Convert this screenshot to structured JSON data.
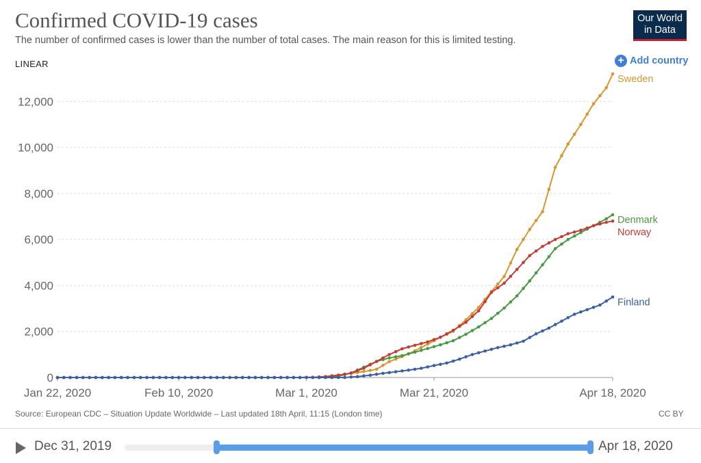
{
  "header": {
    "title": "Confirmed COVID-19 cases",
    "subtitle": "The number of confirmed cases is lower than the number of total cases. The main reason for this is limited testing.",
    "logo_line1": "Our World",
    "logo_line2": "in Data"
  },
  "controls": {
    "scale_label": "LINEAR",
    "add_country_label": "Add country",
    "plus_symbol": "+"
  },
  "chart_data": {
    "type": "line",
    "title": "Confirmed COVID-19 cases",
    "xlabel": "",
    "ylabel": "",
    "ylim": [
      0,
      13200
    ],
    "x_start_date": "2020-01-22",
    "x_end_date": "2020-04-18",
    "x_day_range": [
      0,
      87
    ],
    "x_ticks": [
      {
        "day": 0,
        "label": "Jan 22, 2020"
      },
      {
        "day": 19,
        "label": "Feb 10, 2020"
      },
      {
        "day": 39,
        "label": "Mar 1, 2020"
      },
      {
        "day": 59,
        "label": "Mar 21, 2020"
      },
      {
        "day": 87,
        "label": "Apr 18, 2020"
      }
    ],
    "y_ticks": [
      {
        "value": 0,
        "label": "0"
      },
      {
        "value": 2000,
        "label": "2,000"
      },
      {
        "value": 4000,
        "label": "4,000"
      },
      {
        "value": 6000,
        "label": "6,000"
      },
      {
        "value": 8000,
        "label": "8,000"
      },
      {
        "value": 10000,
        "label": "10,000"
      },
      {
        "value": 12000,
        "label": "12,000"
      }
    ],
    "grid": true,
    "series": [
      {
        "name": "Sweden",
        "color": "#d9962f",
        "points": [
          [
            0,
            0
          ],
          [
            38,
            0
          ],
          [
            40,
            10
          ],
          [
            42,
            40
          ],
          [
            44,
            100
          ],
          [
            46,
            180
          ],
          [
            48,
            260
          ],
          [
            50,
            360
          ],
          [
            52,
            690
          ],
          [
            54,
            910
          ],
          [
            56,
            1160
          ],
          [
            58,
            1450
          ],
          [
            60,
            1750
          ],
          [
            62,
            2010
          ],
          [
            64,
            2510
          ],
          [
            66,
            3050
          ],
          [
            68,
            3740
          ],
          [
            70,
            4390
          ],
          [
            72,
            5570
          ],
          [
            74,
            6440
          ],
          [
            76,
            7210
          ],
          [
            78,
            9140
          ],
          [
            80,
            10150
          ],
          [
            82,
            11000
          ],
          [
            84,
            11900
          ],
          [
            86,
            12600
          ],
          [
            87,
            13200
          ]
        ]
      },
      {
        "name": "Denmark",
        "color": "#4a9a43",
        "points": [
          [
            0,
            0
          ],
          [
            42,
            0
          ],
          [
            44,
            50
          ],
          [
            46,
            200
          ],
          [
            48,
            450
          ],
          [
            50,
            700
          ],
          [
            52,
            850
          ],
          [
            54,
            950
          ],
          [
            56,
            1100
          ],
          [
            58,
            1260
          ],
          [
            60,
            1420
          ],
          [
            62,
            1600
          ],
          [
            64,
            1880
          ],
          [
            66,
            2200
          ],
          [
            68,
            2570
          ],
          [
            70,
            3020
          ],
          [
            72,
            3550
          ],
          [
            74,
            4200
          ],
          [
            76,
            4900
          ],
          [
            78,
            5600
          ],
          [
            80,
            6000
          ],
          [
            82,
            6300
          ],
          [
            84,
            6600
          ],
          [
            86,
            6900
          ],
          [
            87,
            7075
          ]
        ]
      },
      {
        "name": "Norway",
        "color": "#c33c35",
        "points": [
          [
            0,
            0
          ],
          [
            38,
            0
          ],
          [
            40,
            10
          ],
          [
            42,
            40
          ],
          [
            44,
            100
          ],
          [
            46,
            190
          ],
          [
            48,
            400
          ],
          [
            50,
            700
          ],
          [
            52,
            1000
          ],
          [
            54,
            1250
          ],
          [
            56,
            1400
          ],
          [
            58,
            1550
          ],
          [
            60,
            1750
          ],
          [
            62,
            2050
          ],
          [
            64,
            2400
          ],
          [
            66,
            2900
          ],
          [
            68,
            3700
          ],
          [
            70,
            4100
          ],
          [
            72,
            4700
          ],
          [
            74,
            5300
          ],
          [
            76,
            5700
          ],
          [
            78,
            6000
          ],
          [
            80,
            6250
          ],
          [
            82,
            6400
          ],
          [
            84,
            6600
          ],
          [
            86,
            6750
          ],
          [
            87,
            6800
          ]
        ]
      },
      {
        "name": "Finland",
        "color": "#3a5fa2",
        "points": [
          [
            0,
            0
          ],
          [
            45,
            0
          ],
          [
            47,
            40
          ],
          [
            49,
            100
          ],
          [
            51,
            180
          ],
          [
            53,
            250
          ],
          [
            55,
            320
          ],
          [
            57,
            400
          ],
          [
            59,
            520
          ],
          [
            61,
            630
          ],
          [
            63,
            800
          ],
          [
            65,
            1000
          ],
          [
            67,
            1150
          ],
          [
            69,
            1300
          ],
          [
            71,
            1420
          ],
          [
            73,
            1580
          ],
          [
            75,
            1900
          ],
          [
            77,
            2150
          ],
          [
            79,
            2450
          ],
          [
            81,
            2750
          ],
          [
            83,
            2950
          ],
          [
            85,
            3150
          ],
          [
            87,
            3500
          ]
        ]
      }
    ]
  },
  "footer": {
    "source": "Source: European CDC – Situation Update Worldwide – Last updated 18th April, 11:15 (London time)",
    "license": "CC BY"
  },
  "timeline": {
    "start_label": "Dec 31, 2019",
    "end_label": "Apr 18, 2020"
  }
}
